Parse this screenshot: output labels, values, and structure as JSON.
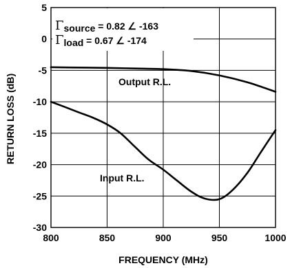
{
  "chart_data": {
    "type": "line",
    "xlabel": "FREQUENCY (MHz)",
    "ylabel": "RETURN LOSS (dB)",
    "xlim": [
      800,
      1000
    ],
    "ylim": [
      -30,
      5
    ],
    "x_ticks": [
      "800",
      "850",
      "900",
      "950",
      "1000"
    ],
    "y_ticks": [
      "5",
      "0",
      "-5",
      "-10",
      "-15",
      "-20",
      "-25",
      "-30"
    ],
    "grid": true,
    "annotations": {
      "gamma": "Γ",
      "source_sub": "source",
      "source_value": " = 0.82 ∠ -163",
      "load_sub": "load",
      "load_value": " = 0.67 ∠ -174"
    },
    "series": [
      {
        "name": "Output R.L.",
        "x": [
          800,
          825,
          850,
          875,
          900,
          925,
          950,
          975,
          1000
        ],
        "y": [
          -4.5,
          -4.55,
          -4.6,
          -4.7,
          -4.8,
          -5.1,
          -5.8,
          -6.9,
          -8.4
        ]
      },
      {
        "name": "Input R.L.",
        "x": [
          800,
          812,
          825,
          837,
          850,
          862,
          875,
          887,
          900,
          912,
          925,
          937,
          950,
          962,
          975,
          987,
          1000
        ],
        "y": [
          -10,
          -10.8,
          -11.7,
          -12.5,
          -13.6,
          -15.0,
          -17.2,
          -19.2,
          -20.8,
          -22.5,
          -24.3,
          -25.4,
          -25.5,
          -24.0,
          -21.3,
          -18.0,
          -14.5
        ]
      }
    ]
  }
}
